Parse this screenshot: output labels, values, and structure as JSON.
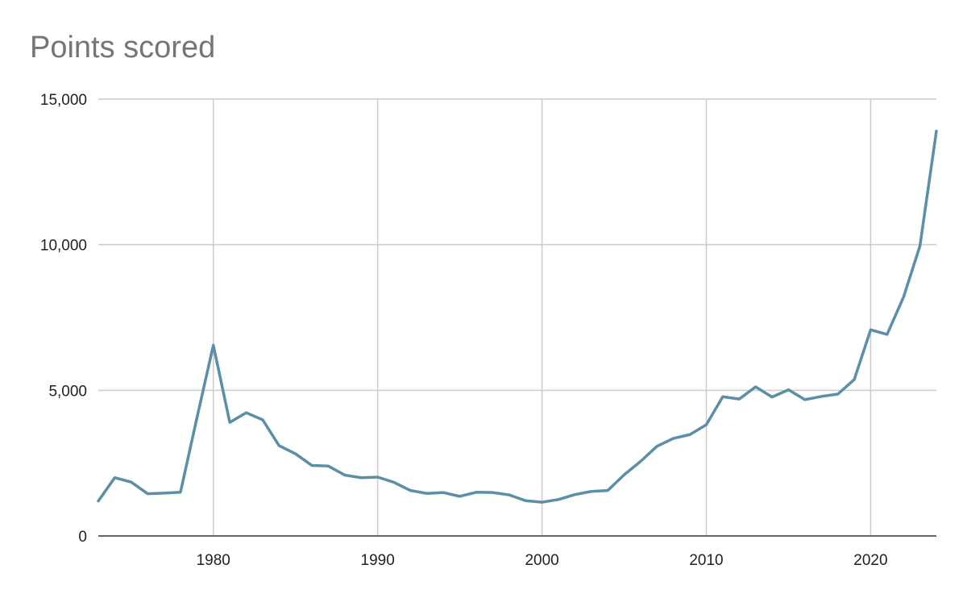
{
  "chart_data": {
    "type": "line",
    "title": "Points scored",
    "xlabel": "",
    "ylabel": "",
    "xlim": [
      1973,
      2024
    ],
    "ylim": [
      0,
      15000
    ],
    "x_ticks": [
      1980,
      1990,
      2000,
      2010,
      2020
    ],
    "y_ticks": [
      0,
      5000,
      10000,
      15000
    ],
    "x_tick_labels": [
      "1980",
      "1990",
      "2000",
      "2010",
      "2020"
    ],
    "y_tick_labels": [
      "0",
      "5,000",
      "10,000",
      "15,000"
    ],
    "grid": true,
    "legend": "none",
    "line_color": "#5b8fa8",
    "grid_color": "#cccccc",
    "axis_color": "#333333",
    "series": [
      {
        "x": [
          1973,
          1974,
          1975,
          1976,
          1977,
          1978,
          1979,
          1980,
          1981,
          1982,
          1983,
          1984,
          1985,
          1986,
          1987,
          1988,
          1989,
          1990,
          1991,
          1992,
          1993,
          1994,
          1995,
          1996,
          1997,
          1998,
          1999,
          2000,
          2001,
          2002,
          2003,
          2004,
          2005,
          2006,
          2007,
          2008,
          2009,
          2010,
          2011,
          2012,
          2013,
          2014,
          2015,
          2016,
          2017,
          2018,
          2019,
          2020,
          2021,
          2022,
          2023,
          2024
        ],
        "values": [
          1200,
          2000,
          1850,
          1450,
          1470,
          1500,
          4050,
          6550,
          3900,
          4230,
          3990,
          3100,
          2820,
          2420,
          2400,
          2090,
          2000,
          2020,
          1840,
          1560,
          1460,
          1490,
          1360,
          1500,
          1490,
          1410,
          1210,
          1160,
          1250,
          1420,
          1530,
          1560,
          2100,
          2560,
          3080,
          3350,
          3480,
          3820,
          4780,
          4700,
          5120,
          4770,
          5020,
          4680,
          4790,
          4870,
          5370,
          7080,
          6920,
          8200,
          9960,
          13900
        ]
      }
    ]
  }
}
